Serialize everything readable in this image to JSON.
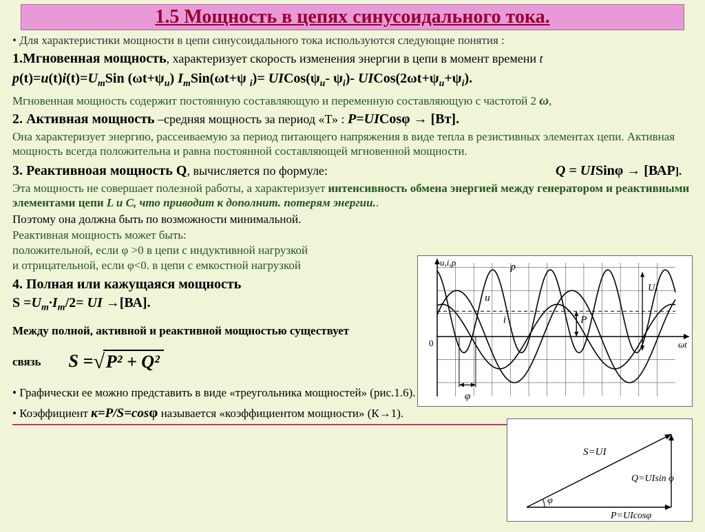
{
  "title": "1.5 Мощность в цепях синусоидального тока.",
  "intro": "• Для характеристики мощности в цепи синусоидального тока используются следующие  понятия :",
  "sec1_h": "1.Мгновенная мощность",
  "sec1_t": ", характеризует скорость изменения энергии  в цепи в  момент времени ",
  "sec1_it": "t",
  "f1a": "p",
  "f1b": "(t)=",
  "f1c": "u",
  "f1d": "(t)",
  "f1e": "i",
  "f1f": "(t)=",
  "f1g": "U",
  "f1h": "Sin (ωt+ψ",
  "f1i": ") ",
  "f1j": "I",
  "f1k": "Sin(ωt+ψ ",
  "f1l": ")= ",
  "f1m": "UI",
  "f1n": "Cos(ψ",
  "f1o": "- ψ",
  "f1p": ")- ",
  "f1q": "UI",
  "f1r": "Cos(2ωt+ψ",
  "f1s": "+ψ",
  "f1t": ").",
  "sec1_note": "Мгновенная мощность содержит постоянную составляющую и переменную составляющую с частотой 2",
  "omega": "ω",
  "comma": ",",
  "sec2_h": "2. Активная  мощность",
  "sec2_t": " –средняя мощность за период «Т» : ",
  "sec2_f": "P=UI",
  "sec2_cos": "Cosφ → ",
  "sec2_u": "[Вт].",
  "sec2_note": "Она характеризует энергию, рассеиваемую за период питающего напряжения в виде тепла в резистивных элементах цепи. Активная мощность всегда положительна и равна постоянной составляющей мгновенной мощности.",
  "sec3_h": "3. Реактивноая мощность Q",
  "sec3_t": ", вычисляется по формуле:",
  "sec3_f": "Q = UI",
  "sec3_sin": "Sinφ  → ",
  "sec3_u": "[ВАР",
  "sec3_ub": "].",
  "sec3_n1": "Эта мощность не совершает полезной работы, а характеризует ",
  "sec3_n2": "интенсивность обмена энергией между генератором и реактивными элементами цепи ",
  "sec3_n3": "L и С, что приводит к дополнит. потерям энергии.",
  "sec3_n3b": ".",
  "sec3_n4": "Поэтому она должна быть по возможности минимальной.",
  "react_intro": "Реактивная мощность может быть:",
  "react_pos": " положительной, если φ >0 в цепи с индуктивной нагрузкой",
  "react_neg": "и отрицательной, если φ<0. в цепи с емкостной нагрузкой",
  "sec4_h": "4. Полная или кажущаяся мощность",
  "sec4_f1": "S =",
  "sec4_f2a": "U",
  "sec4_f2b": "·I",
  "sec4_f3": "/2= ",
  "sec4_f4": "UI →",
  "sec4_u": "[ВА].",
  "rel": "Между полной, активной и реактивной мощностью существует",
  "rel2": "связь",
  "sq_s": "S = ",
  "sq_body": "P² + Q²",
  "tri_note": "• Графически ее можно представить в виде «треугольника мощностей» (рис.1.6).",
  "k_note1": "• Коэффициент ",
  "k_f": "к=P/S=cos",
  "k_phi": "φ",
  "k_note2": " называется «коэффициентом мощности» (К→1).",
  "chart": {
    "y_label": "u,i,p",
    "x_label": "ωt",
    "labels": {
      "p": "p",
      "u": "u",
      "i": "i",
      "P": "P",
      "UI": "UI",
      "phi": "φ",
      "zero": "0"
    },
    "x_range": [
      0,
      13
    ],
    "y_range": [
      -1.3,
      1.6
    ],
    "grid_step_x": 1.0,
    "grid_step_y": 0.5,
    "colors": {
      "axis": "#000000",
      "grid": "#555555",
      "curve": "#000000",
      "bg": "#ffffff"
    },
    "line_width_curve": 1.6,
    "curves": {
      "u": {
        "amp": 1.0,
        "freq": 1.0,
        "phase": 0.5,
        "offset": 0
      },
      "i": {
        "amp": 0.7,
        "freq": 1.0,
        "phase": 1.3,
        "offset": 0
      },
      "p": {
        "amp": 0.9,
        "freq": 2.0,
        "phase": 1.8,
        "offset": 0.55
      }
    }
  },
  "triangle": {
    "S_label": "S=UI",
    "Q_label": "Q=UIsin φ",
    "P_label": "P=UIcosφ",
    "phi_label": "φ",
    "colors": {
      "line": "#000000",
      "bg": "#ffffff"
    },
    "line_width": 1.4
  }
}
